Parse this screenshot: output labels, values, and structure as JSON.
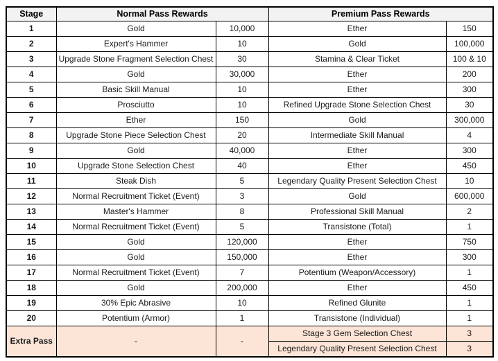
{
  "table": {
    "headers": {
      "stage": "Stage",
      "normal": "Normal Pass Rewards",
      "premium": "Premium Pass Rewards"
    },
    "colors": {
      "header_bg": "#f2f2f2",
      "extra_row_bg": "#fce4d6",
      "border": "#000000"
    },
    "rows": [
      {
        "stage": "1",
        "normal_item": "Gold",
        "normal_qty": "10,000",
        "premium_item": "Ether",
        "premium_qty": "150"
      },
      {
        "stage": "2",
        "normal_item": "Expert's Hammer",
        "normal_qty": "10",
        "premium_item": "Gold",
        "premium_qty": "100,000"
      },
      {
        "stage": "3",
        "normal_item": "Upgrade Stone Fragment Selection Chest",
        "normal_qty": "30",
        "premium_item": "Stamina & Clear Ticket",
        "premium_qty": "100 & 10"
      },
      {
        "stage": "4",
        "normal_item": "Gold",
        "normal_qty": "30,000",
        "premium_item": "Ether",
        "premium_qty": "200"
      },
      {
        "stage": "5",
        "normal_item": "Basic Skill Manual",
        "normal_qty": "10",
        "premium_item": "Ether",
        "premium_qty": "300"
      },
      {
        "stage": "6",
        "normal_item": "Prosciutto",
        "normal_qty": "10",
        "premium_item": "Refined Upgrade Stone Selection Chest",
        "premium_qty": "30"
      },
      {
        "stage": "7",
        "normal_item": "Ether",
        "normal_qty": "150",
        "premium_item": "Gold",
        "premium_qty": "300,000"
      },
      {
        "stage": "8",
        "normal_item": "Upgrade Stone Piece Selection Chest",
        "normal_qty": "20",
        "premium_item": "Intermediate Skill Manual",
        "premium_qty": "4"
      },
      {
        "stage": "9",
        "normal_item": "Gold",
        "normal_qty": "40,000",
        "premium_item": "Ether",
        "premium_qty": "300"
      },
      {
        "stage": "10",
        "normal_item": "Upgrade Stone Selection Chest",
        "normal_qty": "40",
        "premium_item": "Ether",
        "premium_qty": "450"
      },
      {
        "stage": "11",
        "normal_item": "Steak Dish",
        "normal_qty": "5",
        "premium_item": "Legendary Quality Present Selection Chest",
        "premium_qty": "10"
      },
      {
        "stage": "12",
        "normal_item": "Normal Recruitment Ticket (Event)",
        "normal_qty": "3",
        "premium_item": "Gold",
        "premium_qty": "600,000"
      },
      {
        "stage": "13",
        "normal_item": "Master's Hammer",
        "normal_qty": "8",
        "premium_item": "Professional Skill Manual",
        "premium_qty": "2"
      },
      {
        "stage": "14",
        "normal_item": "Normal Recruitment Ticket (Event)",
        "normal_qty": "5",
        "premium_item": "Transistone (Total)",
        "premium_qty": "1"
      },
      {
        "stage": "15",
        "normal_item": "Gold",
        "normal_qty": "120,000",
        "premium_item": "Ether",
        "premium_qty": "750"
      },
      {
        "stage": "16",
        "normal_item": "Gold",
        "normal_qty": "150,000",
        "premium_item": "Ether",
        "premium_qty": "300"
      },
      {
        "stage": "17",
        "normal_item": "Normal Recruitment Ticket (Event)",
        "normal_qty": "7",
        "premium_item": "Potentium (Weapon/Accessory)",
        "premium_qty": "1"
      },
      {
        "stage": "18",
        "normal_item": "Gold",
        "normal_qty": "200,000",
        "premium_item": "Ether",
        "premium_qty": "450"
      },
      {
        "stage": "19",
        "normal_item": "30% Epic Abrasive",
        "normal_qty": "10",
        "premium_item": "Refined Glunite",
        "premium_qty": "1"
      },
      {
        "stage": "20",
        "normal_item": "Potentium (Armor)",
        "normal_qty": "1",
        "premium_item": "Transistone (Individual)",
        "premium_qty": "1"
      }
    ],
    "extra_pass": {
      "stage": "Extra Pass",
      "normal_item": "-",
      "normal_qty": "-",
      "premium_rows": [
        {
          "item": "Stage 3 Gem Selection Chest",
          "qty": "3"
        },
        {
          "item": "Legendary Quality Present Selection Chest",
          "qty": "3"
        }
      ]
    }
  }
}
